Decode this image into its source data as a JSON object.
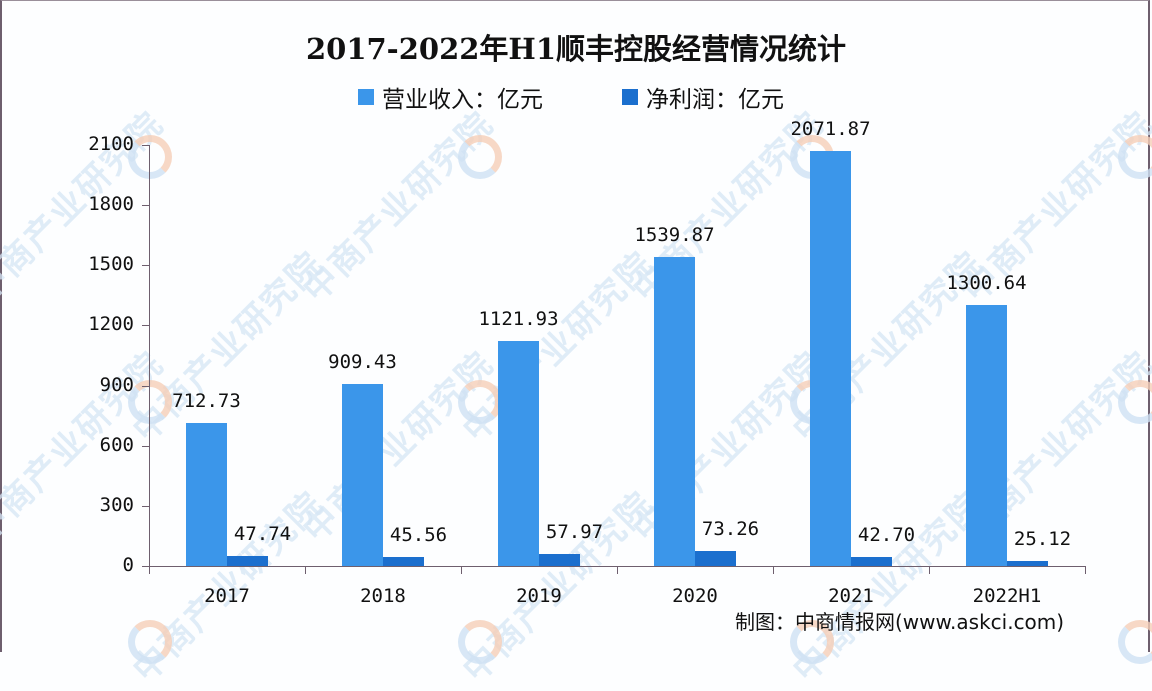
{
  "title": "2017-2022年H1顺丰控股经营情况统计",
  "legend": [
    {
      "label": "营业收入：亿元",
      "color": "#3b96ea"
    },
    {
      "label": "净利润：亿元",
      "color": "#1b6fce"
    }
  ],
  "source": "制图：中商情报网(www.askci.com)",
  "watermark": "中商产业研究院",
  "colors": {
    "revenue": "#3b96ea",
    "profit": "#1b6fce",
    "axis": "#6e5f6e"
  },
  "chart_data": {
    "type": "bar",
    "title": "2017-2022年H1顺丰控股经营情况统计",
    "categories": [
      "2017",
      "2018",
      "2019",
      "2020",
      "2021",
      "2022H1"
    ],
    "series": [
      {
        "name": "营业收入：亿元",
        "values": [
          712.73,
          909.43,
          1121.93,
          1539.87,
          2071.87,
          1300.64
        ]
      },
      {
        "name": "净利润：亿元",
        "values": [
          47.74,
          45.56,
          57.97,
          73.26,
          42.7,
          25.12
        ]
      }
    ],
    "value_labels": {
      "revenue": [
        "712.73",
        "909.43",
        "1121.93",
        "1539.87",
        "2071.87",
        "1300.64"
      ],
      "profit": [
        "47.74",
        "45.56",
        "57.97",
        "73.26",
        "42.70",
        "25.12"
      ]
    },
    "xlabel": "",
    "ylabel": "",
    "ylim": [
      0,
      2100
    ],
    "yticks": [
      "0",
      "300",
      "600",
      "900",
      "1200",
      "1500",
      "1800",
      "2100"
    ],
    "grid": false,
    "legend_position": "top"
  }
}
